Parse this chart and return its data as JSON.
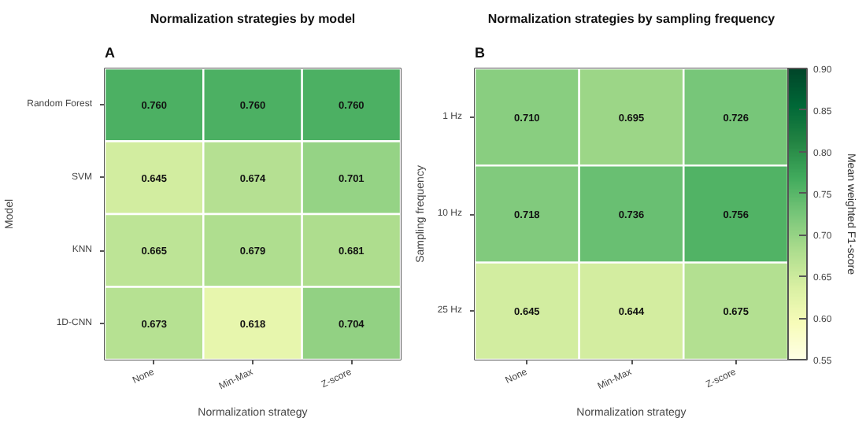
{
  "chart_data": [
    {
      "type": "heatmap",
      "title": "Normalization strategies by model",
      "xlabel": "Normalization strategy",
      "ylabel": "Model",
      "annotations": [
        "A"
      ],
      "categories": [
        "None",
        "Min-Max",
        "Z-score"
      ],
      "y_categories": [
        "Random Forest",
        "SVM",
        "KNN",
        "1D-CNN"
      ],
      "cells": [
        [
          0.76,
          0.76,
          0.76
        ],
        [
          0.645,
          0.674,
          0.701
        ],
        [
          0.665,
          0.679,
          0.681
        ],
        [
          0.673,
          0.618,
          0.704
        ]
      ],
      "cell_labels": [
        [
          "0.760",
          "0.760",
          "0.760"
        ],
        [
          "0.645",
          "0.674",
          "0.701"
        ],
        [
          "0.665",
          "0.679",
          "0.681"
        ],
        [
          "0.673",
          "0.618",
          "0.704"
        ]
      ]
    },
    {
      "type": "heatmap",
      "title": "Normalization strategies by sampling frequency",
      "xlabel": "Normalization strategy",
      "ylabel": "Sampling frequency",
      "clabel": "Mean weighted F1-score",
      "annotations": [
        "B"
      ],
      "categories": [
        "None",
        "Min-Max",
        "Z-score"
      ],
      "y_categories": [
        "1 Hz",
        "10 Hz",
        "25 Hz"
      ],
      "cells": [
        [
          0.71,
          0.695,
          0.726
        ],
        [
          0.718,
          0.736,
          0.756
        ],
        [
          0.645,
          0.644,
          0.675
        ]
      ],
      "cell_labels": [
        [
          "0.710",
          "0.695",
          "0.726"
        ],
        [
          "0.718",
          "0.736",
          "0.756"
        ],
        [
          "0.645",
          "0.644",
          "0.675"
        ]
      ],
      "clim": [
        0.55,
        0.9
      ],
      "cticks": [
        0.55,
        {
          "value": 0.6,
          "label": "0.60"
        },
        0.65,
        {
          "value": 0.7,
          "label": "0.70"
        },
        0.75,
        {
          "value": 0.8,
          "label": "0.80"
        },
        0.85,
        {
          "value": 0.9,
          "label": "0.90"
        }
      ]
    }
  ]
}
